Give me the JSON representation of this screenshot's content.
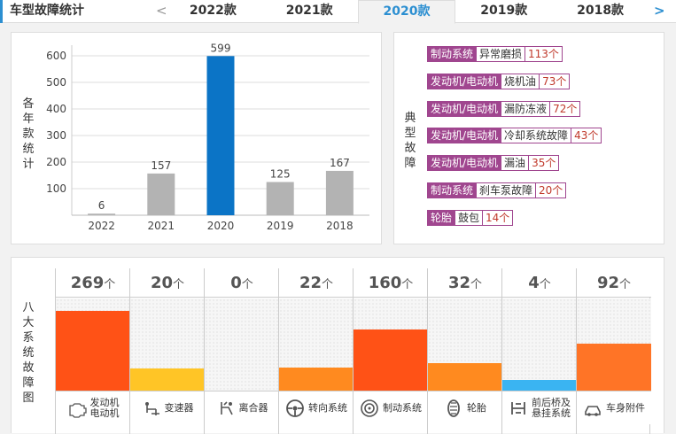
{
  "header": {
    "title": "车型故障统计",
    "prev_arrow": "<",
    "next_arrow": ">",
    "tabs": [
      "2022款",
      "2021款",
      "2020款",
      "2019款",
      "2018款"
    ],
    "active_tab": "2020款"
  },
  "year_chart": {
    "ylabel": "各年款统计",
    "chart_data": {
      "type": "bar",
      "categories": [
        "2022",
        "2021",
        "2020",
        "2019",
        "2018"
      ],
      "values": [
        6,
        157,
        599,
        125,
        167
      ],
      "highlight": "2020",
      "yticks": [
        100,
        200,
        300,
        400,
        500,
        600
      ],
      "ylim": [
        0,
        620
      ],
      "grid": true,
      "colors": {
        "bar": "#b3b3b3",
        "highlight": "#0b74c6"
      }
    }
  },
  "typical": {
    "label": "典型故障",
    "items": [
      {
        "cat": "制动系统",
        "sub": "异常磨损",
        "cnt": "113个"
      },
      {
        "cat": "发动机/电动机",
        "sub": "烧机油",
        "cnt": "73个"
      },
      {
        "cat": "发动机/电动机",
        "sub": "漏防冻液",
        "cnt": "72个"
      },
      {
        "cat": "发动机/电动机",
        "sub": "冷却系统故障",
        "cnt": "43个"
      },
      {
        "cat": "发动机/电动机",
        "sub": "漏油",
        "cnt": "35个"
      },
      {
        "cat": "制动系统",
        "sub": "刹车泵故障",
        "cnt": "20个"
      },
      {
        "cat": "轮胎",
        "sub": "鼓包",
        "cnt": "14个"
      }
    ]
  },
  "systems": {
    "label": "八大系统故障图",
    "unit": "个",
    "items": [
      {
        "count": "269",
        "value": 269,
        "label": "发动机\n电动机",
        "icon": "engine-icon",
        "color": "#ff5216"
      },
      {
        "count": "20",
        "value": 20,
        "label": "变速器",
        "icon": "gearbox-icon",
        "color": "#ffc526"
      },
      {
        "count": "0",
        "value": 0,
        "label": "离合器",
        "icon": "clutch-icon",
        "color": "#ffc526"
      },
      {
        "count": "22",
        "value": 22,
        "label": "转向系统",
        "icon": "steering-wheel-icon",
        "color": "#ff8a1f"
      },
      {
        "count": "160",
        "value": 160,
        "label": "制动系统",
        "icon": "brake-disc-icon",
        "color": "#ff5216"
      },
      {
        "count": "32",
        "value": 32,
        "label": "轮胎",
        "icon": "tire-icon",
        "color": "#ff8a1f"
      },
      {
        "count": "4",
        "value": 4,
        "label": "前后桥及\n悬挂系统",
        "icon": "suspension-icon",
        "color": "#3ab4f2"
      },
      {
        "count": "92",
        "value": 92,
        "label": "车身附件",
        "icon": "body-accessory-icon",
        "color": "#ff7426"
      }
    ]
  }
}
